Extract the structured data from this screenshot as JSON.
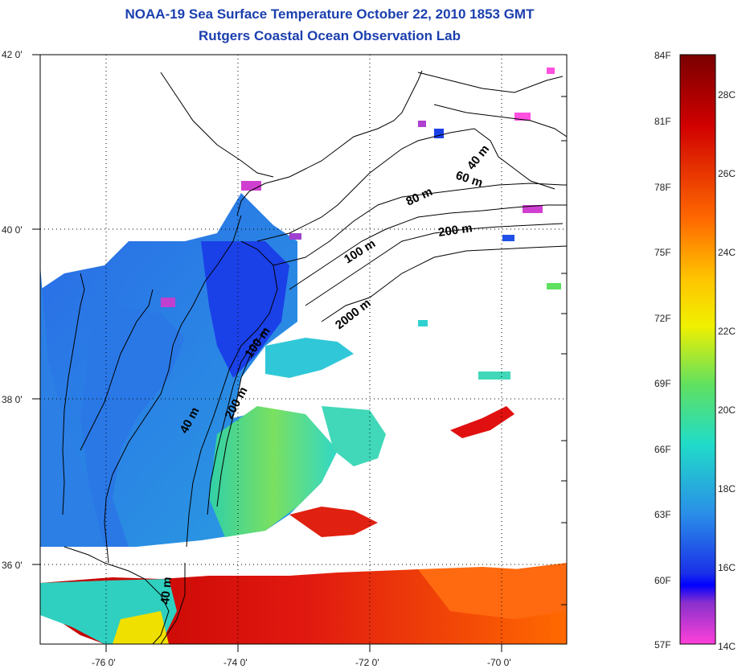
{
  "title": "NOAA-19 Sea Surface Temperature October 22, 2010 1853 GMT",
  "subtitle": "Rutgers Coastal Ocean Observation Lab",
  "map": {
    "lat_ticks": [
      "42 0'",
      "40 0'",
      "38 0'",
      "36 0'"
    ],
    "lon_ticks": [
      "-76 0'",
      "-74 0'",
      "-72 0'",
      "-70 0'"
    ],
    "grid": "dotted",
    "isobath_labels": [
      "40 m",
      "60 m",
      "80 m",
      "200 m",
      "100 m",
      "2000 m",
      "100 m",
      "40 m",
      "200 m",
      "40 m"
    ]
  },
  "colorbar": {
    "fahrenheit_labels": [
      "84F",
      "81F",
      "78F",
      "75F",
      "72F",
      "69F",
      "66F",
      "63F",
      "60F",
      "57F"
    ],
    "celsius_labels": [
      "28C",
      "26C",
      "24C",
      "22C",
      "20C",
      "18C",
      "16C",
      "14C"
    ],
    "colors": [
      "#7a0000",
      "#e01010",
      "#ff7a00",
      "#ffd800",
      "#f2f200",
      "#4ae05a",
      "#20dccc",
      "#2a9ae8",
      "#1a38e8",
      "#0000ff",
      "#9a2acc",
      "#ff40d8"
    ]
  }
}
